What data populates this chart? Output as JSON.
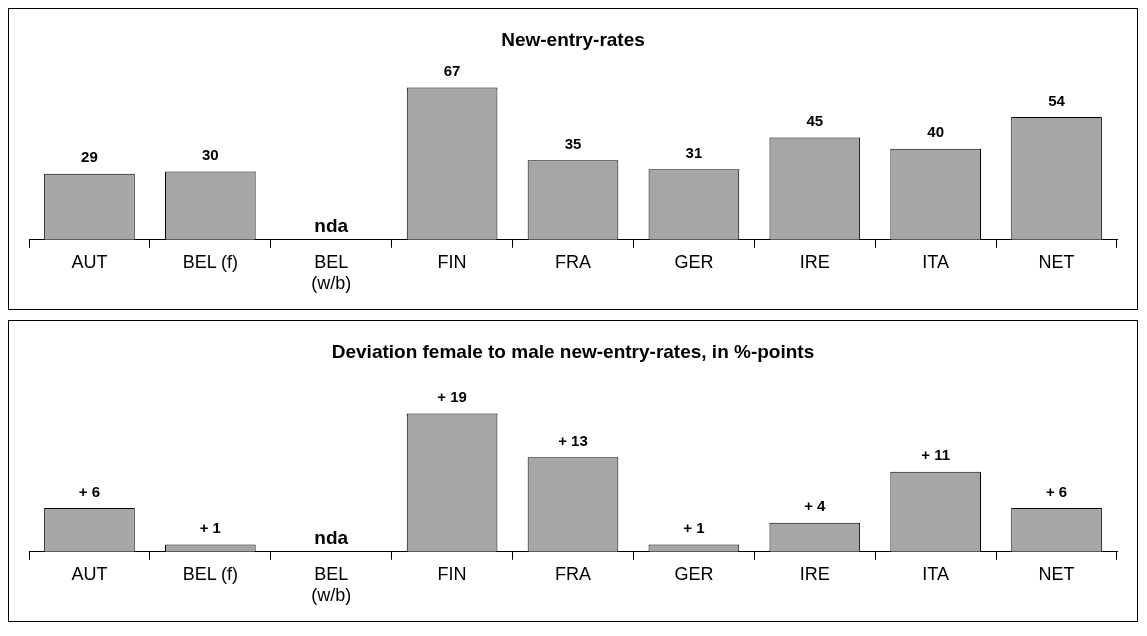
{
  "chart_data": [
    {
      "type": "bar",
      "title": "New-entry-rates",
      "categories": [
        "AUT",
        "BEL (f)",
        "BEL (w/b)",
        "FIN",
        "FRA",
        "GER",
        "IRE",
        "ITA",
        "NET"
      ],
      "values": [
        29,
        30,
        null,
        67,
        35,
        31,
        45,
        40,
        54
      ],
      "color": "#a6a6a6",
      "value_labels": [
        "29",
        "30",
        "nda",
        "67",
        "35",
        "31",
        "45",
        "40",
        "54"
      ],
      "grid": false,
      "legend": false,
      "tick_labels": "x"
    },
    {
      "type": "bar",
      "title": "Deviation female to male new-entry-rates, in %-points",
      "categories": [
        "AUT",
        "BEL (f)",
        "BEL (w/b)",
        "FIN",
        "FRA",
        "GER",
        "IRE",
        "ITA",
        "NET"
      ],
      "values": [
        6,
        1,
        null,
        19,
        13,
        1,
        4,
        11,
        6
      ],
      "color": "#a6a6a6",
      "value_labels": [
        "+ 6",
        "+ 1",
        "nda",
        "+ 19",
        "+ 13",
        "+ 1",
        "+ 4",
        "+ 11",
        "+ 6"
      ],
      "grid": false,
      "legend": false,
      "tick_labels": "x"
    }
  ]
}
